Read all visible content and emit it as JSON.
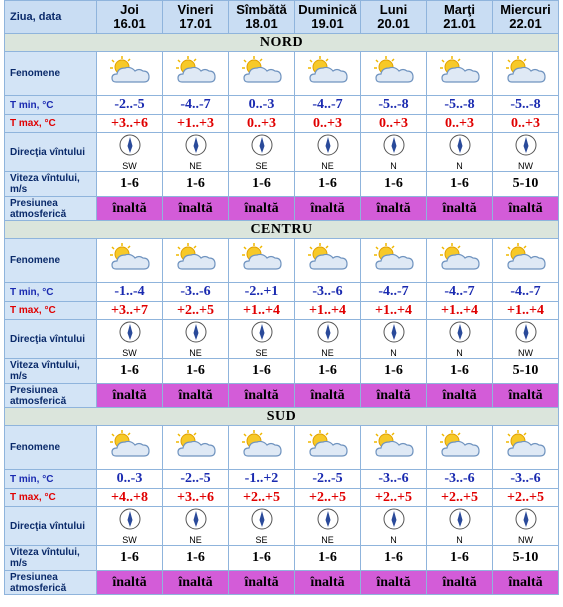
{
  "header": {
    "label": "Ziua, data",
    "days": [
      {
        "day": "Joi",
        "date": "16.01"
      },
      {
        "day": "Vineri",
        "date": "17.01"
      },
      {
        "day": "Sîmbătă",
        "date": "18.01"
      },
      {
        "day": "Duminică",
        "date": "19.01"
      },
      {
        "day": "Luni",
        "date": "20.01"
      },
      {
        "day": "Marţi",
        "date": "21.01"
      },
      {
        "day": "Miercuri",
        "date": "22.01"
      }
    ]
  },
  "regions": [
    {
      "name": "NORD",
      "rows": [
        {
          "label": "Fenomene"
        },
        {
          "label": "T min, °C",
          "values": [
            "-2..-5",
            "-4..-7",
            "0..-3",
            "-4..-7",
            "-5..-8",
            "-5..-8",
            "-5..-8"
          ]
        },
        {
          "label": "T max, °C",
          "values": [
            "+3..+6",
            "+1..+3",
            "0..+3",
            "0..+3",
            "0..+3",
            "0..+3",
            "0..+3"
          ]
        },
        {
          "label": "Direcţia vîntului",
          "values": [
            "SW",
            "NE",
            "SE",
            "NE",
            "N",
            "N",
            "NW"
          ]
        },
        {
          "label": "Viteza vîntului, m/s",
          "values": [
            "1-6",
            "1-6",
            "1-6",
            "1-6",
            "1-6",
            "1-6",
            "5-10"
          ]
        },
        {
          "label": "Presiunea atmosferică",
          "values": [
            "înaltă",
            "înaltă",
            "înaltă",
            "înaltă",
            "înaltă",
            "înaltă",
            "înaltă"
          ]
        }
      ]
    },
    {
      "name": "CENTRU",
      "rows": [
        {
          "label": "Fenomene"
        },
        {
          "label": "T min, °C",
          "values": [
            "-1..-4",
            "-3..-6",
            "-2..+1",
            "-3..-6",
            "-4..-7",
            "-4..-7",
            "-4..-7"
          ]
        },
        {
          "label": "T max, °C",
          "values": [
            "+3..+7",
            "+2..+5",
            "+1..+4",
            "+1..+4",
            "+1..+4",
            "+1..+4",
            "+1..+4"
          ]
        },
        {
          "label": "Direcţia vîntului",
          "values": [
            "SW",
            "NE",
            "SE",
            "NE",
            "N",
            "N",
            "NW"
          ]
        },
        {
          "label": "Viteza vîntului, m/s",
          "values": [
            "1-6",
            "1-6",
            "1-6",
            "1-6",
            "1-6",
            "1-6",
            "5-10"
          ]
        },
        {
          "label": "Presiunea atmosferică",
          "values": [
            "înaltă",
            "înaltă",
            "înaltă",
            "înaltă",
            "înaltă",
            "înaltă",
            "înaltă"
          ]
        }
      ]
    },
    {
      "name": "SUD",
      "rows": [
        {
          "label": "Fenomene"
        },
        {
          "label": "T min, °C",
          "values": [
            "0..-3",
            "-2..-5",
            "-1..+2",
            "-2..-5",
            "-3..-6",
            "-3..-6",
            "-3..-6"
          ]
        },
        {
          "label": "T max, °C",
          "values": [
            "+4..+8",
            "+3..+6",
            "+2..+5",
            "+2..+5",
            "+2..+5",
            "+2..+5",
            "+2..+5"
          ]
        },
        {
          "label": "Direcţia vîntului",
          "values": [
            "SW",
            "NE",
            "SE",
            "NE",
            "N",
            "N",
            "NW"
          ]
        },
        {
          "label": "Viteza vîntului, m/s",
          "values": [
            "1-6",
            "1-6",
            "1-6",
            "1-6",
            "1-6",
            "1-6",
            "5-10"
          ]
        },
        {
          "label": "Presiunea atmosferică",
          "values": [
            "înaltă",
            "înaltă",
            "înaltă",
            "înaltă",
            "înaltă",
            "înaltă",
            "înaltă"
          ]
        }
      ]
    }
  ]
}
